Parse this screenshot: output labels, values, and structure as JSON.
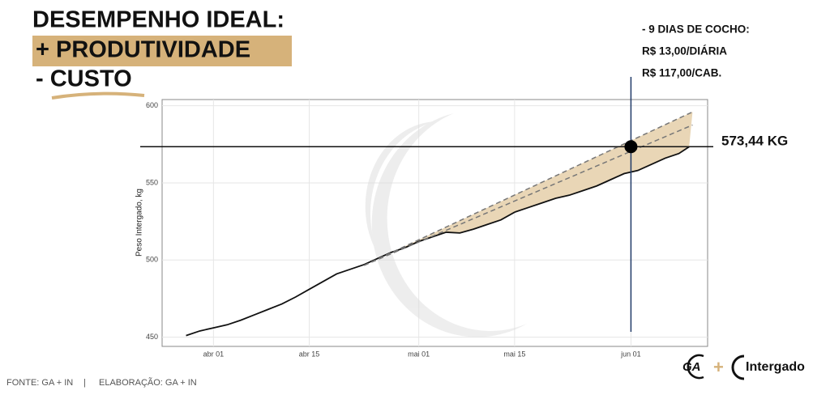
{
  "header": {
    "lines": [
      "DESEMPENHO IDEAL:",
      "+ PRODUTIVIDADE",
      "- CUSTO"
    ]
  },
  "notes": [
    "- 9 DIAS DE COCHO:",
    "R$ 13,00/DIÁRIA",
    "R$ 117,00/CAB."
  ],
  "footer": {
    "source": "FONTE: GA + IN",
    "separator": "|",
    "credit": "ELABORAÇÃO: GA + IN"
  },
  "logos": [
    "GA",
    "+",
    "Intergado"
  ],
  "chart_data": {
    "type": "line",
    "ylabel": "Peso Intergado, kg",
    "xlim": [
      -7.5,
      72.2
    ],
    "xticks": [
      {
        "value": 0,
        "label": "abr 01"
      },
      {
        "value": 14,
        "label": "abr 15"
      },
      {
        "value": 30,
        "label": "mai 01"
      },
      {
        "value": 44,
        "label": "mai 15"
      },
      {
        "value": 61,
        "label": "jun 01"
      }
    ],
    "ylim": [
      444,
      604
    ],
    "yticks": [
      450,
      500,
      550,
      600
    ],
    "grid": true,
    "fill_color": "#e9d6b6",
    "series": [
      {
        "color": "#111111",
        "dash": false,
        "x": [
          -4,
          -2,
          0,
          2,
          4,
          6,
          8,
          10,
          12,
          14,
          16,
          18,
          20,
          22,
          24,
          26,
          28,
          30,
          32,
          34,
          36,
          38,
          40,
          42,
          44,
          46,
          48,
          50,
          52,
          54,
          56,
          58,
          60,
          62,
          64,
          66,
          68,
          69.5
        ],
        "values": [
          451,
          454,
          456,
          458,
          461,
          464.5,
          468,
          471.5,
          476,
          481,
          486,
          491,
          494,
          497,
          501,
          505,
          508,
          512,
          515,
          518,
          517.5,
          520,
          523,
          526,
          531,
          534,
          537,
          540,
          542,
          545,
          548,
          552,
          556,
          558,
          562,
          566,
          569,
          573.4
        ]
      },
      {
        "color": "#777777",
        "dash": true,
        "x": [
          22,
          70
        ],
        "values": [
          496.5,
          596
        ]
      },
      {
        "color": "#777777",
        "dash": true,
        "x": [
          22,
          70
        ],
        "values": [
          496.5,
          587.5
        ]
      }
    ],
    "hline": {
      "value": 573.44,
      "label": "573,44 KG",
      "color": "#111111"
    },
    "vline": {
      "x": 61,
      "color": "#1f3a68"
    }
  }
}
